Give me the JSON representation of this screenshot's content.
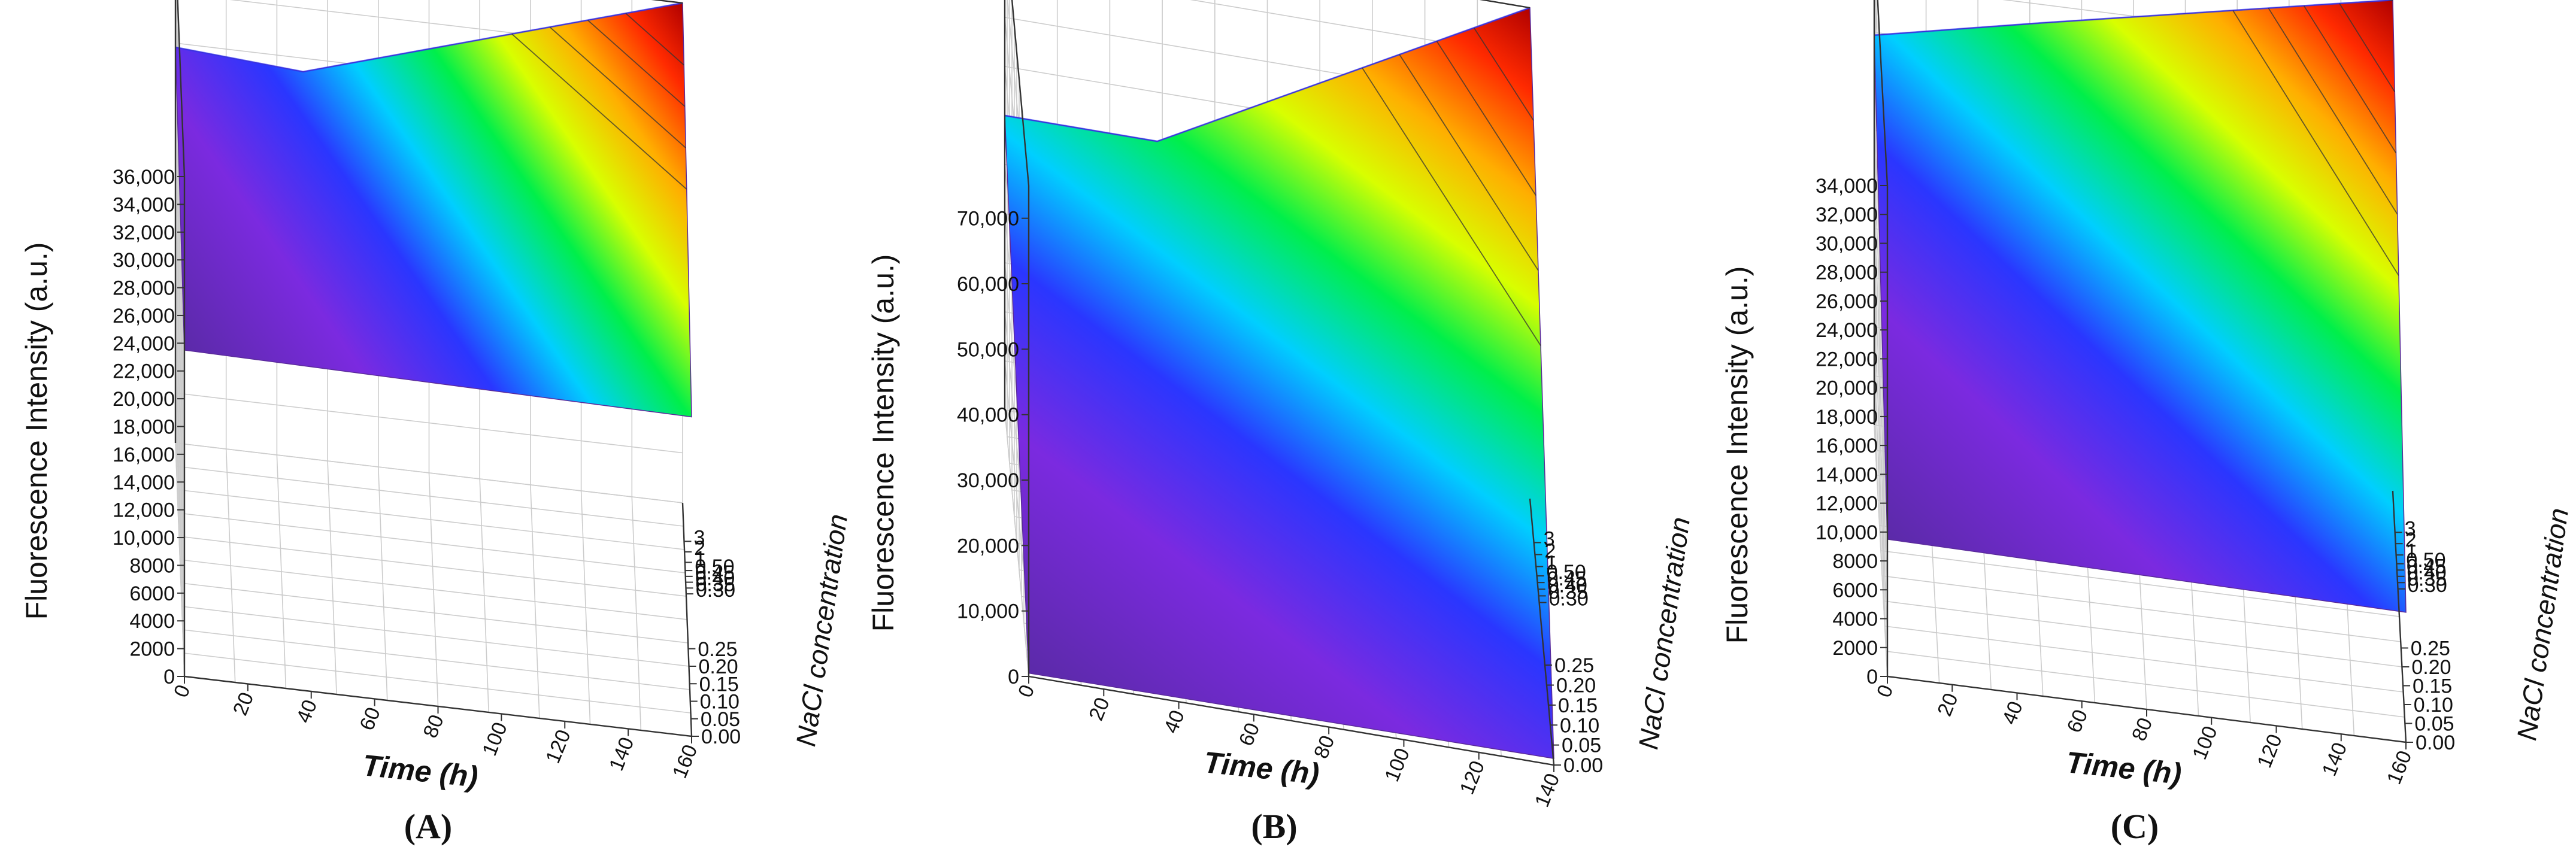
{
  "figure": {
    "x_label": "Time (h)",
    "y_label": "Fluorescence Intensity (a.u.)",
    "z_label": "NaCl concentration",
    "z_ticks": [
      "0.00",
      "0.05",
      "0.10",
      "0.15",
      "0.20",
      "0.25",
      "0.30",
      "0.35",
      "0.40",
      "0.45",
      "0.50",
      "1",
      "2",
      "3"
    ]
  },
  "chart_data": [
    {
      "type": "surface3d",
      "panel_label": "(A)",
      "xlabel": "Time (h)",
      "ylabel": "Fluorescence Intensity (a.u.)",
      "zlabel": "NaCl concentration",
      "x_ticks": [
        "0",
        "20",
        "40",
        "60",
        "80",
        "100",
        "120",
        "140",
        "160"
      ],
      "y_ticks": [
        "0",
        "2000",
        "4000",
        "6000",
        "8000",
        "10,000",
        "12,000",
        "14,000",
        "16,000",
        "18,000",
        "20,000",
        "22,000",
        "24,000",
        "26,000",
        "28,000",
        "30,000",
        "32,000",
        "34,000",
        "36,000"
      ],
      "xlim": [
        0,
        160
      ],
      "ylim": [
        0,
        36000
      ],
      "edges": {
        "front_nacl_0.00": {
          "x": [
            0,
            160
          ],
          "y": [
            23500,
            23000
          ]
        },
        "left_time_0": {
          "nacl": [
            "0.00",
            "3"
          ],
          "y": [
            23500,
            28500
          ]
        },
        "back_nacl_3": {
          "x": [
            0,
            160
          ],
          "y": [
            28500,
            36000
          ]
        }
      },
      "ridge_peak": {
        "x": 40,
        "y": 29500
      }
    },
    {
      "type": "surface3d",
      "panel_label": "(B)",
      "xlabel": "Time (h)",
      "ylabel": "Fluorescence Intensity (a.u.)",
      "zlabel": "NaCl concentration",
      "x_ticks": [
        "0",
        "20",
        "40",
        "60",
        "80",
        "100",
        "120",
        "140"
      ],
      "y_ticks": [
        "0",
        "10,000",
        "20,000",
        "30,000",
        "40,000",
        "50,000",
        "60,000",
        "70,000"
      ],
      "xlim": [
        0,
        140
      ],
      "ylim": [
        0,
        75000
      ],
      "edges": {
        "front_nacl_0.00": {
          "x": [
            0,
            140
          ],
          "y": [
            500,
            1000
          ]
        },
        "left_time_0": {
          "nacl": [
            "0.00",
            "3"
          ],
          "y": [
            500,
            45000
          ]
        },
        "back_nacl_3": {
          "x": [
            0,
            140
          ],
          "y": [
            45000,
            75000
          ]
        }
      },
      "ridge_peak": {
        "x": 40,
        "y": 49000
      }
    },
    {
      "type": "surface3d",
      "panel_label": "(C)",
      "xlabel": "Time (h)",
      "ylabel": "Fluorescence Intensity (a.u.)",
      "zlabel": "NaCl concentration",
      "x_ticks": [
        "0",
        "20",
        "40",
        "60",
        "80",
        "100",
        "120",
        "140",
        "160"
      ],
      "y_ticks": [
        "0",
        "2000",
        "4000",
        "6000",
        "8000",
        "10,000",
        "12,000",
        "14,000",
        "16,000",
        "18,000",
        "20,000",
        "22,000",
        "24,000",
        "26,000",
        "28,000",
        "30,000",
        "32,000",
        "34,000"
      ],
      "xlim": [
        0,
        160
      ],
      "ylim": [
        0,
        34000
      ],
      "edges": {
        "front_nacl_0.00": {
          "x": [
            0,
            160
          ],
          "y": [
            9500,
            9000
          ]
        },
        "left_time_0": {
          "nacl": [
            "0.00",
            "3"
          ],
          "y": [
            9500,
            27000
          ]
        },
        "back_nacl_3": {
          "x": [
            0,
            160
          ],
          "y": [
            27000,
            34000
          ]
        }
      },
      "ridge_peak": {
        "x": 50,
        "y": 31000
      }
    }
  ]
}
